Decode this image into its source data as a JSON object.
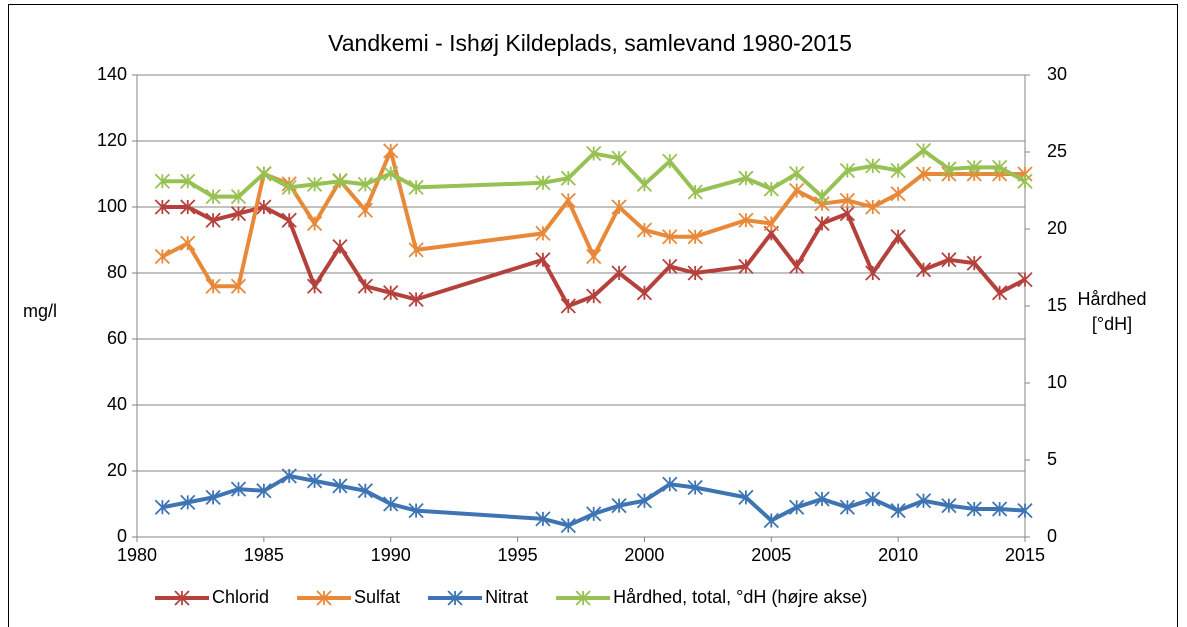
{
  "chart_data": {
    "type": "line",
    "title": "Vandkemi - Ishøj Kildeplads, samlevand 1980-2015",
    "y_label": "mg/l",
    "y2_label": [
      "Hårdhed",
      "[°dH]"
    ],
    "x": [
      1981,
      1982,
      1983,
      1984,
      1985,
      1986,
      1987,
      1988,
      1989,
      1990,
      1991,
      1996,
      1997,
      1998,
      1999,
      2000,
      2001,
      2002,
      2004,
      2005,
      2006,
      2007,
      2008,
      2009,
      2010,
      2011,
      2012,
      2013,
      2014,
      2015
    ],
    "xlim": [
      1980,
      2015
    ],
    "xticks": [
      1980,
      1985,
      1990,
      1995,
      2000,
      2005,
      2010,
      2015
    ],
    "ylim": [
      0,
      140
    ],
    "yticks": [
      0,
      20,
      40,
      60,
      80,
      100,
      120,
      140
    ],
    "y2lim": [
      0,
      30
    ],
    "y2ticks": [
      0,
      5,
      10,
      15,
      20,
      25,
      30
    ],
    "grid": true,
    "legend": "bottom",
    "series": [
      {
        "name": "Chlorid",
        "color": "#b5413d",
        "values": [
          100,
          100,
          96,
          98,
          100,
          96,
          76,
          88,
          76,
          74,
          72,
          84,
          70,
          73,
          80,
          74,
          82,
          80,
          82,
          92,
          82,
          95,
          98,
          80,
          91,
          81,
          84,
          83,
          74,
          78
        ]
      },
      {
        "name": "Sulfat",
        "color": "#e8893a",
        "values": [
          85,
          89,
          76,
          76,
          110,
          107,
          95,
          108,
          99,
          117,
          87,
          92,
          102,
          85,
          100,
          93,
          91,
          91,
          96,
          95,
          105,
          101,
          102,
          100,
          104,
          110,
          110,
          110,
          110,
          110
        ]
      },
      {
        "name": "Nitrat",
        "color": "#3e74b4",
        "values": [
          9,
          10.5,
          12,
          14.5,
          14,
          18.5,
          17,
          15.5,
          14,
          10,
          8,
          5.5,
          3.5,
          7,
          9.5,
          11,
          16,
          15,
          12,
          5,
          9,
          11.5,
          9,
          11.5,
          8,
          11,
          9.5,
          8.5,
          8.5,
          8
        ]
      },
      {
        "name": "Hårdhed, total, °dH (højre akse)",
        "color": "#98c154",
        "axis": "y2",
        "values": [
          23.1,
          23.1,
          22.1,
          22.1,
          23.6,
          22.7,
          22.9,
          23.1,
          22.9,
          23.6,
          22.7,
          23.0,
          23.3,
          24.9,
          24.6,
          22.9,
          24.4,
          22.4,
          23.3,
          22.6,
          23.6,
          22.1,
          23.8,
          24.1,
          23.8,
          25.1,
          23.9,
          24.0,
          24.0,
          23.1
        ]
      }
    ]
  }
}
